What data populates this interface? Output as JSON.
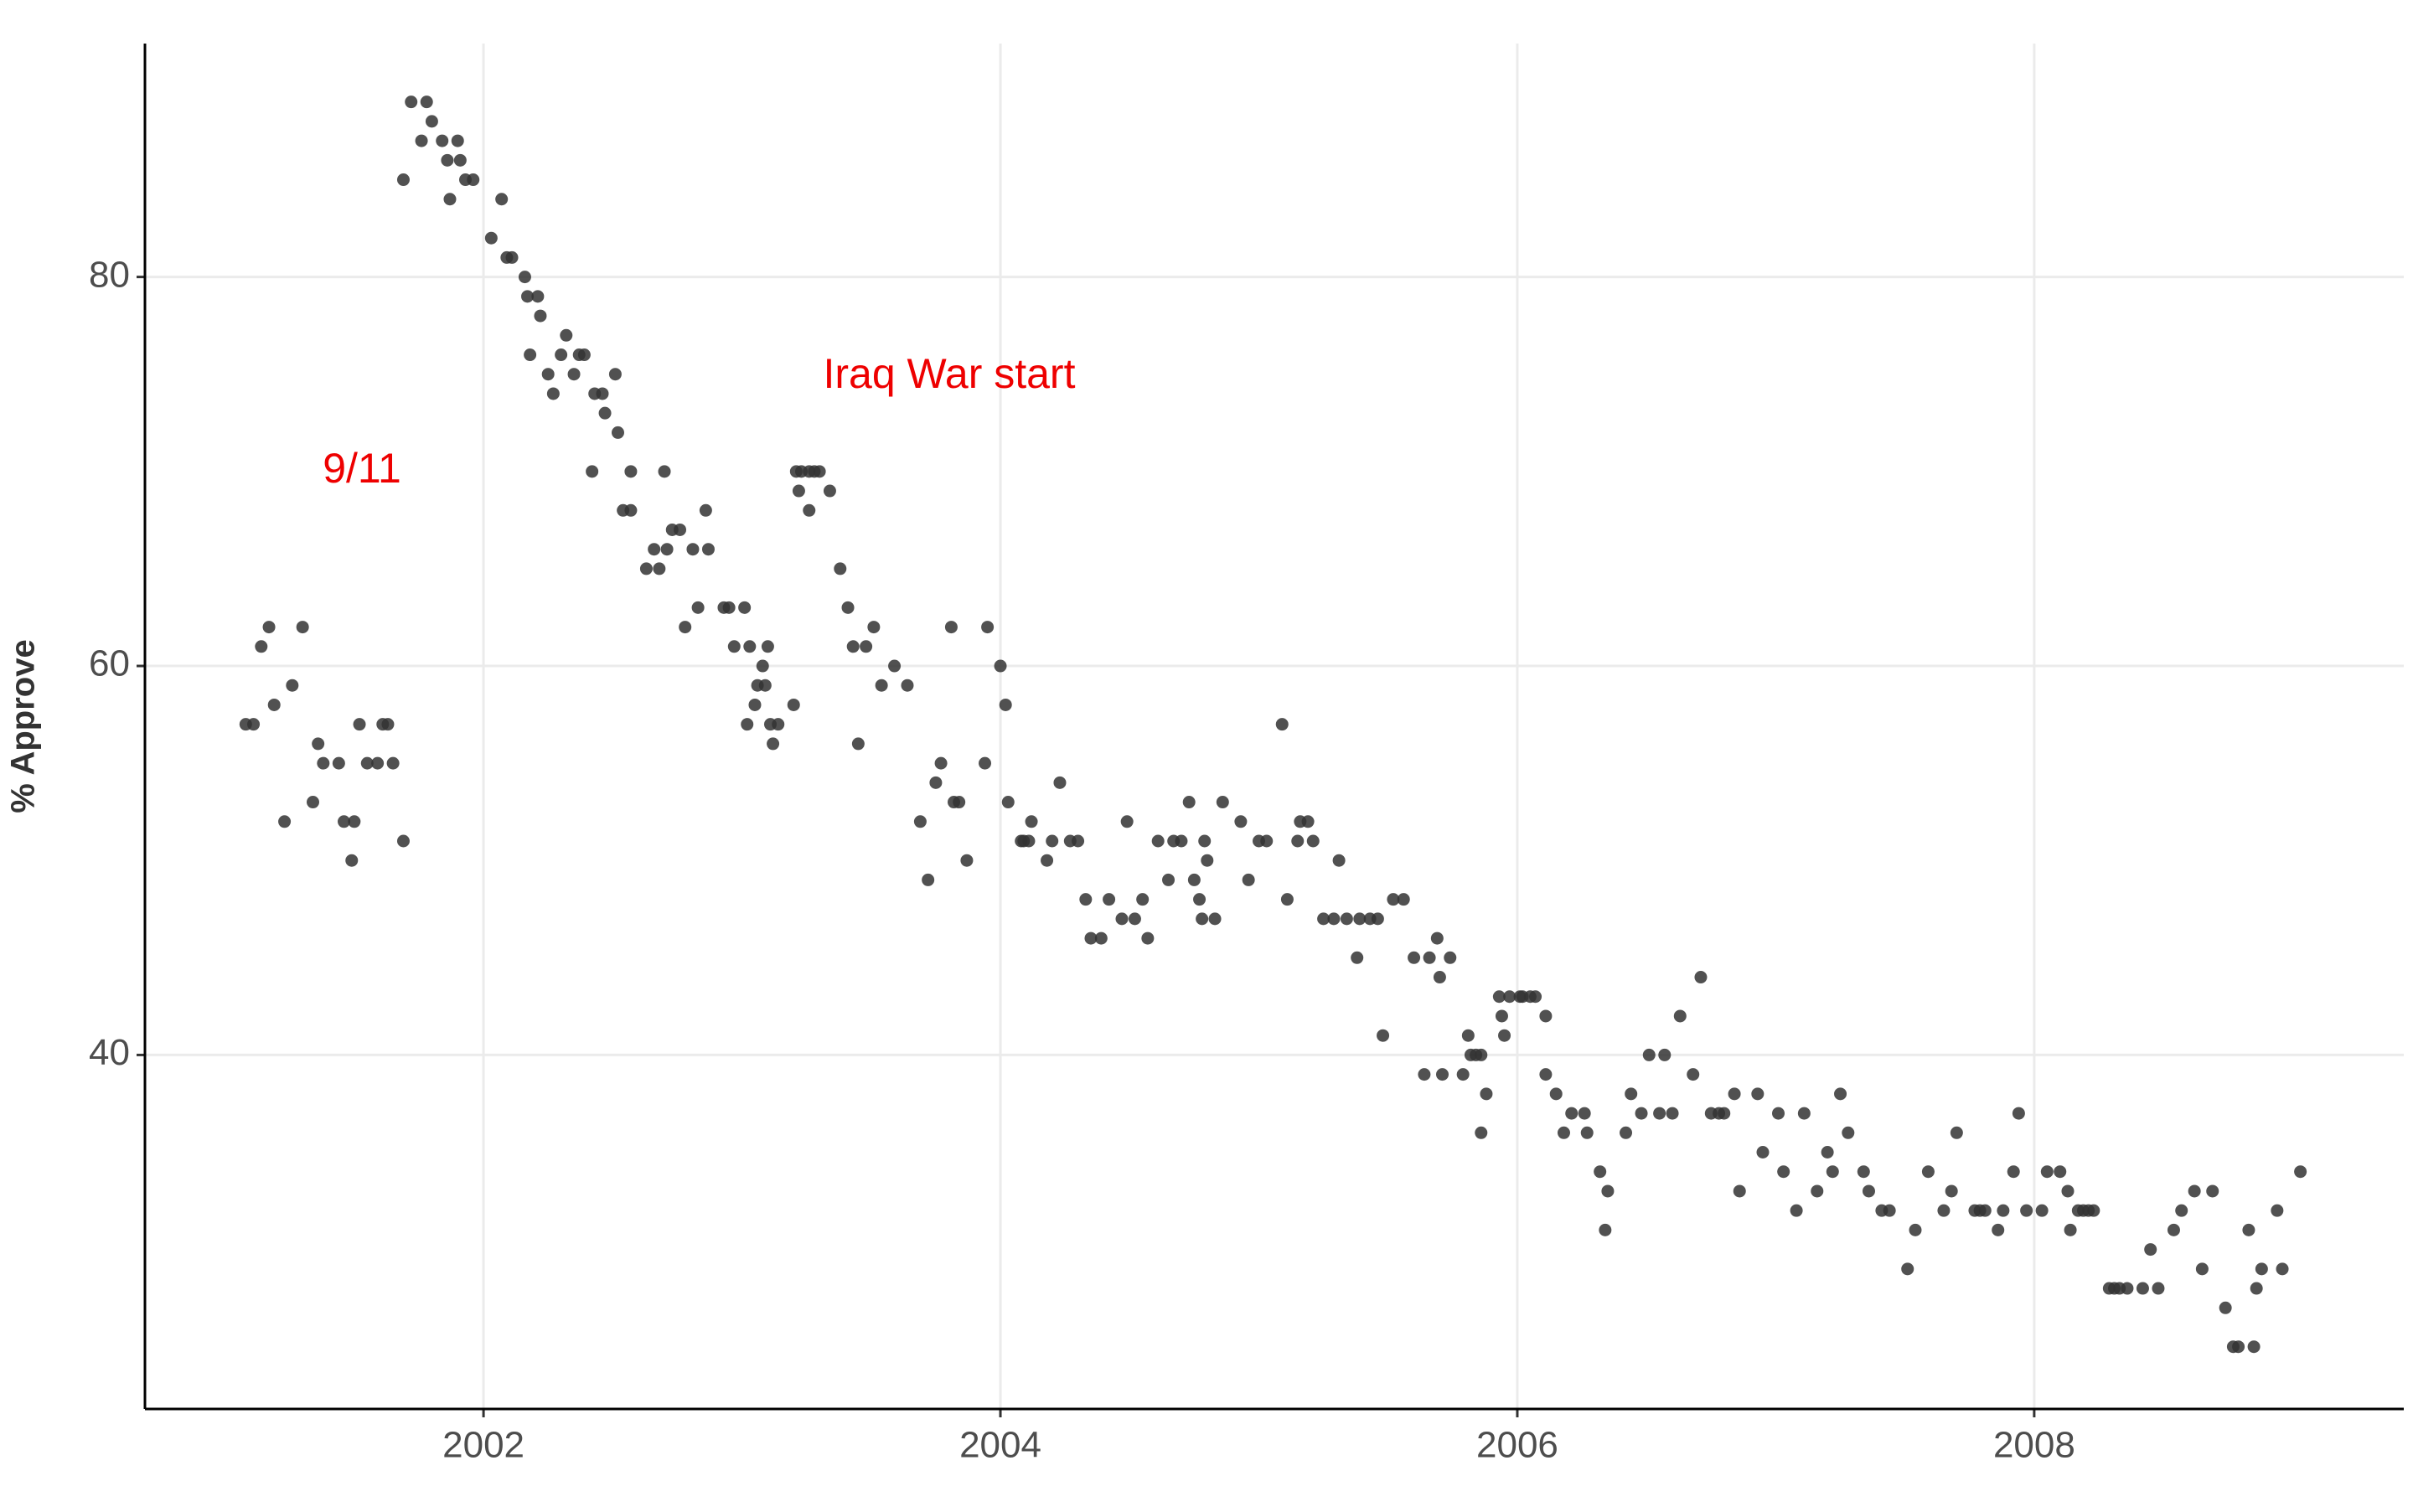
{
  "chart_data": {
    "type": "scatter",
    "y_label": "% Approve",
    "color": "#333333",
    "annotation_color": "#ee0000",
    "annotations": [
      "9/11",
      "Iraq War start"
    ],
    "xlim": [
      2000.69,
      2009.43
    ],
    "ylim": [
      21.8,
      92
    ],
    "xticks": [
      2002,
      2004,
      2006,
      2008
    ],
    "yticks": [
      40,
      60,
      80
    ],
    "grid": true,
    "x": [
      2001.08,
      2001.11,
      2001.14,
      2001.17,
      2001.19,
      2001.23,
      2001.26,
      2001.3,
      2001.34,
      2001.36,
      2001.38,
      2001.44,
      2001.46,
      2001.49,
      2001.5,
      2001.52,
      2001.55,
      2001.59,
      2001.61,
      2001.63,
      2001.65,
      2001.69,
      2001.69,
      2001.72,
      2001.76,
      2001.78,
      2001.8,
      2001.84,
      2001.86,
      2001.87,
      2001.9,
      2001.91,
      2001.93,
      2001.96,
      2002.03,
      2002.07,
      2002.09,
      2002.11,
      2002.16,
      2002.17,
      2002.18,
      2002.21,
      2002.22,
      2002.25,
      2002.27,
      2002.3,
      2002.32,
      2002.35,
      2002.37,
      2002.39,
      2002.42,
      2002.43,
      2002.46,
      2002.47,
      2002.51,
      2002.52,
      2002.54,
      2002.57,
      2002.57,
      2002.63,
      2002.66,
      2002.68,
      2002.7,
      2002.71,
      2002.73,
      2002.76,
      2002.78,
      2002.81,
      2002.83,
      2002.86,
      2002.87,
      2002.93,
      2002.95,
      2002.97,
      2003.01,
      2003.02,
      2003.03,
      2003.05,
      2003.06,
      2003.08,
      2003.09,
      2003.1,
      2003.11,
      2003.12,
      2003.14,
      2003.2,
      2003.21,
      2003.22,
      2003.23,
      2003.26,
      2003.26,
      2003.28,
      2003.3,
      2003.34,
      2003.38,
      2003.41,
      2003.43,
      2003.45,
      2003.48,
      2003.51,
      2003.54,
      2003.59,
      2003.64,
      2003.69,
      2003.72,
      2003.75,
      2003.77,
      2003.81,
      2003.82,
      2003.84,
      2003.87,
      2003.94,
      2003.95,
      2004.0,
      2004.02,
      2004.03,
      2004.08,
      2004.09,
      2004.11,
      2004.12,
      2004.18,
      2004.2,
      2004.23,
      2004.27,
      2004.3,
      2004.33,
      2004.35,
      2004.39,
      2004.42,
      2004.47,
      2004.49,
      2004.52,
      2004.55,
      2004.57,
      2004.61,
      2004.65,
      2004.67,
      2004.7,
      2004.73,
      2004.75,
      2004.77,
      2004.78,
      2004.79,
      2004.8,
      2004.83,
      2004.86,
      2004.93,
      2004.96,
      2005.0,
      2005.03,
      2005.09,
      2005.11,
      2005.15,
      2005.16,
      2005.19,
      2005.21,
      2005.25,
      2005.29,
      2005.31,
      2005.34,
      2005.38,
      2005.39,
      2005.43,
      2005.46,
      2005.48,
      2005.52,
      2005.56,
      2005.6,
      2005.64,
      2005.66,
      2005.69,
      2005.7,
      2005.71,
      2005.74,
      2005.79,
      2005.81,
      2005.82,
      2005.84,
      2005.86,
      2005.86,
      2005.88,
      2005.93,
      2005.94,
      2005.95,
      2005.97,
      2006.01,
      2006.02,
      2006.05,
      2006.07,
      2006.11,
      2006.11,
      2006.15,
      2006.18,
      2006.21,
      2006.26,
      2006.27,
      2006.32,
      2006.35,
      2006.34,
      2006.42,
      2006.44,
      2006.48,
      2006.51,
      2006.55,
      2006.57,
      2006.6,
      2006.63,
      2006.68,
      2006.71,
      2006.75,
      2006.78,
      2006.8,
      2006.84,
      2006.86,
      2006.93,
      2006.95,
      2007.01,
      2007.03,
      2007.08,
      2007.11,
      2007.16,
      2007.2,
      2007.22,
      2007.25,
      2007.28,
      2007.34,
      2007.36,
      2007.41,
      2007.44,
      2007.51,
      2007.54,
      2007.59,
      2007.65,
      2007.68,
      2007.7,
      2007.77,
      2007.79,
      2007.81,
      2007.86,
      2007.88,
      2007.92,
      2007.94,
      2007.97,
      2008.03,
      2008.05,
      2008.1,
      2008.13,
      2008.14,
      2008.17,
      2008.19,
      2008.21,
      2008.23,
      2008.29,
      2008.31,
      2008.33,
      2008.36,
      2008.42,
      2008.45,
      2008.48,
      2008.54,
      2008.57,
      2008.62,
      2008.65,
      2008.69,
      2008.74,
      2008.77,
      2008.79,
      2008.83,
      2008.85,
      2008.86,
      2008.88,
      2008.94,
      2008.96,
      2009.03
    ],
    "values": [
      57,
      57,
      61,
      62,
      58,
      52,
      59,
      62,
      53,
      56,
      55,
      55,
      52,
      50,
      52,
      57,
      55,
      55,
      57,
      57,
      55,
      51,
      85,
      89,
      87,
      89,
      88,
      87,
      86,
      84,
      87,
      86,
      85,
      85,
      82,
      84,
      81,
      81,
      80,
      79,
      76,
      79,
      78,
      75,
      74,
      76,
      77,
      75,
      76,
      76,
      70,
      74,
      74,
      73,
      75,
      72,
      68,
      68,
      70,
      65,
      66,
      65,
      70,
      66,
      67,
      67,
      62,
      66,
      63,
      68,
      66,
      63,
      63,
      61,
      63,
      57,
      61,
      58,
      59,
      60,
      59,
      61,
      57,
      56,
      57,
      58,
      70,
      69,
      70,
      70,
      68,
      70,
      70,
      69,
      65,
      63,
      61,
      56,
      61,
      62,
      59,
      60,
      59,
      52,
      49,
      54,
      55,
      62,
      53,
      53,
      50,
      55,
      62,
      60,
      58,
      53,
      51,
      51,
      51,
      52,
      50,
      51,
      54,
      51,
      51,
      48,
      46,
      46,
      48,
      47,
      52,
      47,
      48,
      46,
      51,
      49,
      51,
      51,
      53,
      49,
      48,
      47,
      51,
      50,
      47,
      53,
      52,
      49,
      51,
      51,
      57,
      48,
      51,
      52,
      52,
      51,
      47,
      47,
      50,
      47,
      45,
      47,
      47,
      47,
      41,
      48,
      48,
      45,
      39,
      45,
      46,
      44,
      39,
      45,
      39,
      41,
      40,
      40,
      40,
      36,
      38,
      43,
      42,
      41,
      43,
      43,
      43,
      43,
      43,
      42,
      39,
      38,
      36,
      37,
      37,
      36,
      34,
      33,
      31,
      36,
      38,
      37,
      40,
      37,
      40,
      37,
      42,
      39,
      44,
      37,
      37,
      37,
      38,
      33,
      38,
      35,
      37,
      34,
      32,
      37,
      33,
      35,
      34,
      38,
      36,
      34,
      33,
      32,
      32,
      29,
      31,
      34,
      32,
      33,
      36,
      32,
      32,
      32,
      31,
      32,
      34,
      37,
      32,
      32,
      34,
      34,
      33,
      31,
      32,
      32,
      32,
      32,
      28,
      28,
      28,
      28,
      28,
      30,
      28,
      31,
      32,
      33,
      29,
      33,
      27,
      25,
      25,
      31,
      25,
      28,
      29,
      32,
      29,
      34
    ]
  }
}
